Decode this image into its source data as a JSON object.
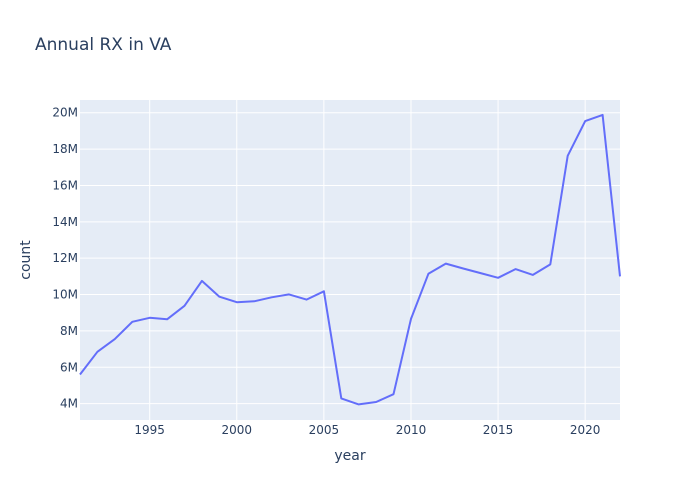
{
  "chart_data": {
    "type": "line",
    "title": "Annual RX in VA",
    "xlabel": "year",
    "ylabel": "count",
    "xlim": [
      1991,
      2022
    ],
    "ylim": [
      3100000,
      20700000
    ],
    "grid": true,
    "x_ticks": [
      1995,
      2000,
      2005,
      2010,
      2015,
      2020
    ],
    "x_tick_labels": [
      "1995",
      "2000",
      "2005",
      "2010",
      "2015",
      "2020"
    ],
    "y_ticks": [
      4000000,
      6000000,
      8000000,
      10000000,
      12000000,
      14000000,
      16000000,
      18000000,
      20000000
    ],
    "y_tick_labels": [
      "4M",
      "6M",
      "8M",
      "10M",
      "12M",
      "14M",
      "16M",
      "18M",
      "20M"
    ],
    "series": [
      {
        "color": "#636efa",
        "x": [
          1991,
          1992,
          1993,
          1994,
          1995,
          1996,
          1997,
          1998,
          1999,
          2000,
          2001,
          2002,
          2003,
          2004,
          2005,
          2006,
          2007,
          2008,
          2009,
          2010,
          2011,
          2012,
          2013,
          2014,
          2015,
          2016,
          2017,
          2018,
          2019,
          2020,
          2021,
          2022
        ],
        "y": [
          5600000,
          6850000,
          7550000,
          8500000,
          8720000,
          8640000,
          9380000,
          10750000,
          9880000,
          9580000,
          9630000,
          9850000,
          10010000,
          9720000,
          10180000,
          4290000,
          3960000,
          4090000,
          4520000,
          8660000,
          11140000,
          11700000,
          11430000,
          11180000,
          10920000,
          11400000,
          11080000,
          11660000,
          17630000,
          19540000,
          19880000,
          11000000
        ]
      }
    ]
  }
}
